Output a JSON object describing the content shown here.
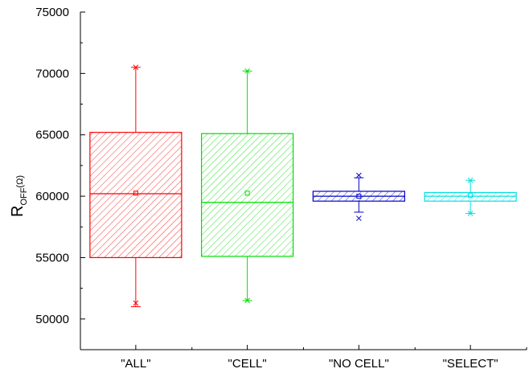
{
  "chart_data": {
    "type": "box",
    "categories": [
      "\"ALL\"",
      "\"CELL\"",
      "\"NO CELL\"",
      "\"SELECT\""
    ],
    "series": [
      {
        "color": "#ff0000",
        "whisker_low": 51000,
        "q1": 55000,
        "median": 60200,
        "mean": 60250,
        "q3": 65200,
        "whisker_high": 70500,
        "min_marker": 51300,
        "max_marker": 70500
      },
      {
        "color": "#00dd00",
        "whisker_low": 51500,
        "q1": 55100,
        "median": 59500,
        "mean": 60250,
        "q3": 65100,
        "whisker_high": 70200,
        "min_marker": 51500,
        "max_marker": 70200
      },
      {
        "color": "#0000cc",
        "whisker_low": 58700,
        "q1": 59600,
        "median": 60000,
        "mean": 60000,
        "q3": 60400,
        "whisker_high": 61500,
        "min_marker": 58200,
        "max_marker": 61700
      },
      {
        "color": "#00e0e0",
        "whisker_low": 58600,
        "q1": 59600,
        "median": 60000,
        "mean": 60050,
        "q3": 60300,
        "whisker_high": 61300,
        "min_marker": 58600,
        "max_marker": 61300
      }
    ],
    "yaxis": {
      "label_main": "R",
      "label_sub": "OFF",
      "label_unit": "(Ω)",
      "ylim": [
        47500,
        75000
      ],
      "ticks": [
        50000,
        55000,
        60000,
        65000,
        70000,
        75000
      ],
      "tick_labels": [
        "50000",
        "55000",
        "60000",
        "65000",
        "70000",
        "75000"
      ]
    },
    "grid": false,
    "legend": "none"
  }
}
